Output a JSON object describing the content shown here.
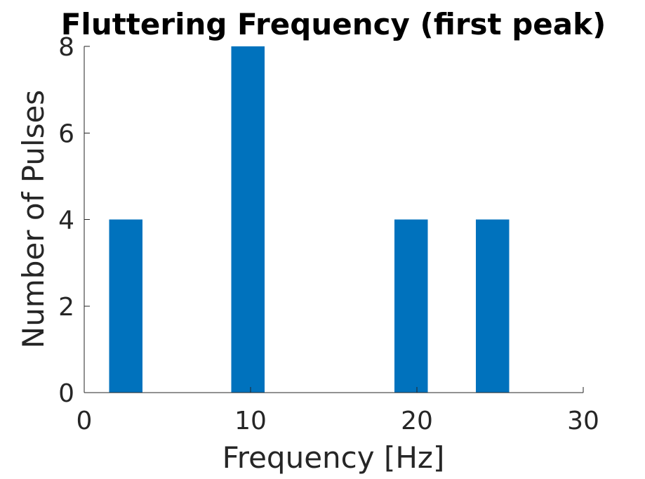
{
  "chart_data": {
    "type": "bar",
    "title": "Fluttering Frequency (first peak)",
    "xlabel": "Frequency [Hz]",
    "ylabel": "Number of Pulses",
    "xlim": [
      0,
      30
    ],
    "ylim": [
      0,
      8
    ],
    "xticks": [
      0,
      10,
      20,
      30
    ],
    "yticks": [
      0,
      2,
      4,
      6,
      8
    ],
    "bin_width": 2,
    "bars": [
      {
        "x_start": 1.5,
        "x_end": 3.5,
        "value": 4
      },
      {
        "x_start": 8.85,
        "x_end": 10.85,
        "value": 8
      },
      {
        "x_start": 18.65,
        "x_end": 20.65,
        "value": 4
      },
      {
        "x_start": 23.55,
        "x_end": 25.55,
        "value": 4
      }
    ],
    "grid": false,
    "colors": {
      "bar": "#0072bd",
      "axis": "#262626",
      "title": "#000000"
    }
  }
}
